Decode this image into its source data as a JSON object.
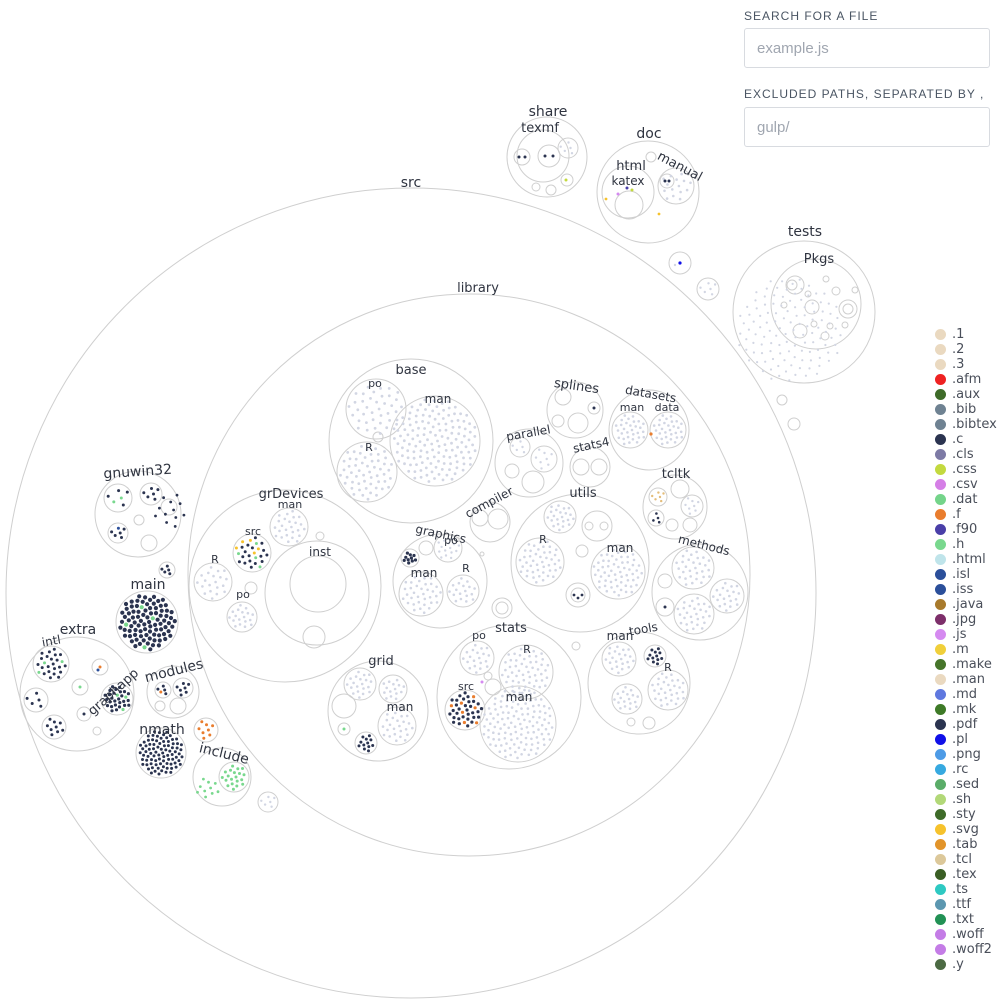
{
  "controls": {
    "search_label": "SEARCH FOR A FILE",
    "search_placeholder": "example.js",
    "exclude_label": "EXCLUDED PATHS, SEPARATED BY ,",
    "exclude_placeholder": "gulp/"
  },
  "folders": {
    "src": "src",
    "library": "library",
    "base": "base",
    "base_po": "po",
    "base_man": "man",
    "base_R": "R",
    "splines": "splines",
    "datasets": "datasets",
    "datasets_man": "man",
    "datasets_data": "data",
    "parallel": "parallel",
    "stats4": "stats4",
    "tcltk": "tcltk",
    "grDevices": "grDevices",
    "grDevices_man": "man",
    "grDevices_src": "src",
    "grDevices_R": "R",
    "grDevices_po": "po",
    "grDevices_inst": "inst",
    "compiler": "compiler",
    "graphics": "graphics",
    "graphics_po": "po",
    "graphics_man": "man",
    "graphics_R": "R",
    "utils": "utils",
    "utils_R": "R",
    "utils_man": "man",
    "methods": "methods",
    "grid": "grid",
    "grid_man": "man",
    "stats": "stats",
    "stats_po": "po",
    "stats_R": "R",
    "stats_src": "src",
    "stats_man": "man",
    "tools": "tools",
    "tools_man": "man",
    "tools_R": "R",
    "gnuwin32": "gnuwin32",
    "main": "main",
    "extra": "extra",
    "intl": "intl",
    "graphapp": "graphapp",
    "modules": "modules",
    "nmath": "nmath",
    "include": "include",
    "share": "share",
    "texmf": "texmf",
    "doc": "doc",
    "html": "html",
    "katex": "katex",
    "manual": "manual",
    "tests": "tests",
    "Pkgs": "Pkgs"
  },
  "legend": [
    {
      "ext": ".1",
      "color": "#ead9c0"
    },
    {
      "ext": ".2",
      "color": "#ead9c0"
    },
    {
      "ext": ".3",
      "color": "#ead9c0"
    },
    {
      "ext": ".afm",
      "color": "#ee2222"
    },
    {
      "ext": ".aux",
      "color": "#3e6b29"
    },
    {
      "ext": ".bib",
      "color": "#6f8292"
    },
    {
      "ext": ".bibtex",
      "color": "#6f8292"
    },
    {
      "ext": ".c",
      "color": "#2b3450"
    },
    {
      "ext": ".cls",
      "color": "#7d7aa5"
    },
    {
      "ext": ".css",
      "color": "#c3d93f"
    },
    {
      "ext": ".csv",
      "color": "#d57fe6"
    },
    {
      "ext": ".dat",
      "color": "#74d48a"
    },
    {
      "ext": ".f",
      "color": "#e97d2e"
    },
    {
      "ext": ".f90",
      "color": "#4a3fa8"
    },
    {
      "ext": ".h",
      "color": "#79d88e"
    },
    {
      "ext": ".html",
      "color": "#bfe4ea"
    },
    {
      "ext": ".isl",
      "color": "#2b4f9a"
    },
    {
      "ext": ".iss",
      "color": "#2b4f9a"
    },
    {
      "ext": ".java",
      "color": "#a87a2c"
    },
    {
      "ext": ".jpg",
      "color": "#7d2f6a"
    },
    {
      "ext": ".js",
      "color": "#d58af0"
    },
    {
      "ext": ".m",
      "color": "#f0cf3a"
    },
    {
      "ext": ".make",
      "color": "#46752a"
    },
    {
      "ext": ".man",
      "color": "#ead9c0"
    },
    {
      "ext": ".md",
      "color": "#5f78df"
    },
    {
      "ext": ".mk",
      "color": "#3e7a27"
    },
    {
      "ext": ".pdf",
      "color": "#2b3450"
    },
    {
      "ext": ".pl",
      "color": "#1010e8"
    },
    {
      "ext": ".png",
      "color": "#4d9be6"
    },
    {
      "ext": ".rc",
      "color": "#37a9e0"
    },
    {
      "ext": ".sed",
      "color": "#5aac68"
    },
    {
      "ext": ".sh",
      "color": "#b2d878"
    },
    {
      "ext": ".sty",
      "color": "#3e6b29"
    },
    {
      "ext": ".svg",
      "color": "#f6c22c"
    },
    {
      "ext": ".tab",
      "color": "#e2942a"
    },
    {
      "ext": ".tcl",
      "color": "#dcc89a"
    },
    {
      "ext": ".tex",
      "color": "#3a5e24"
    },
    {
      "ext": ".ts",
      "color": "#2ec9c2"
    },
    {
      "ext": ".ttf",
      "color": "#5c97b0"
    },
    {
      "ext": ".txt",
      "color": "#229155"
    },
    {
      "ext": ".woff",
      "color": "#c47ce6"
    },
    {
      "ext": ".woff2",
      "color": "#c47ce6"
    },
    {
      "ext": ".y",
      "color": "#4c6a43"
    }
  ],
  "colors": {
    "outline": "#cfcfcf",
    "dot_default": "#d2d6e3",
    "dot_c": "#2b3450",
    "dot_h": "#79d88e",
    "dot_f": "#e97d2e"
  }
}
